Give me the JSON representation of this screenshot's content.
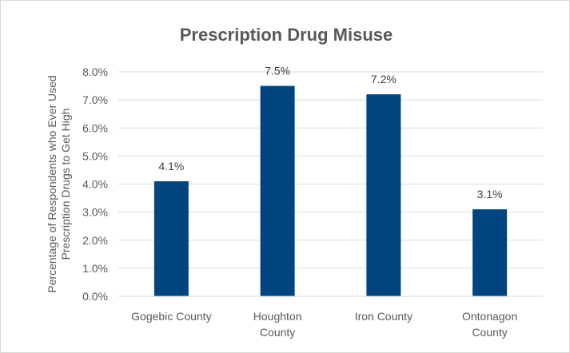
{
  "chart_data": {
    "type": "bar",
    "title": "Prescription Drug Misuse",
    "ylabel_lines": [
      "Percentage of Respondents who Ever Used",
      "Prescription Drugs to Get High"
    ],
    "xlabel": "",
    "categories": [
      [
        "Gogebic County"
      ],
      [
        "Houghton",
        "County"
      ],
      [
        "Iron County"
      ],
      [
        "Ontonagon",
        "County"
      ]
    ],
    "values": [
      4.1,
      7.5,
      7.2,
      3.1
    ],
    "data_labels": [
      "4.1%",
      "7.5%",
      "7.2%",
      "3.1%"
    ],
    "ylim": [
      0,
      8
    ],
    "yticks": [
      0,
      1,
      2,
      3,
      4,
      5,
      6,
      7,
      8
    ],
    "ytick_labels": [
      "0.0%",
      "1.0%",
      "2.0%",
      "3.0%",
      "4.0%",
      "5.0%",
      "6.0%",
      "7.0%",
      "8.0%"
    ],
    "grid": true,
    "legend": "none",
    "colors": {
      "bar": "#004580",
      "grid": "#d9d9d9",
      "text": "#595959"
    }
  }
}
